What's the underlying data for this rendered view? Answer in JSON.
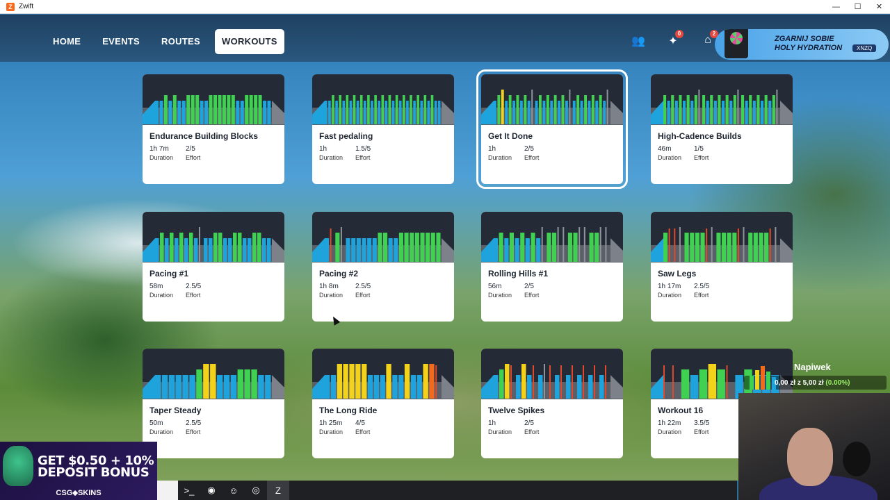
{
  "window": {
    "title": "Zwift",
    "app_icon_letter": "Z",
    "controls": [
      "—",
      "☐",
      "✕"
    ]
  },
  "nav": {
    "tabs": [
      {
        "label": "HOME",
        "active": false
      },
      {
        "label": "EVENTS",
        "active": false
      },
      {
        "label": "ROUTES",
        "active": false
      },
      {
        "label": "WORKOUTS",
        "active": true
      }
    ],
    "icons": [
      {
        "name": "friends-icon",
        "glyph": "👥",
        "badge": ""
      },
      {
        "name": "ride-ons-icon",
        "glyph": "✦",
        "badge": "0"
      },
      {
        "name": "garage-icon",
        "glyph": "⌂",
        "badge": "2"
      }
    ]
  },
  "ad": {
    "headline_1": "ZGARNIJ SOBIE",
    "headline_2": "HOLY HYDRATION",
    "code": "XNZQ"
  },
  "duration_label": "Duration",
  "effort_label": "Effort",
  "colors": {
    "blue": "#1fa3dc",
    "green": "#41d152",
    "yellow": "#f2d21b",
    "orange": "#f26b1d",
    "red": "#e04a2b",
    "grey": "#8f949b"
  },
  "workouts": [
    {
      "name": "Endurance Building Blocks",
      "duration": "1h 7m",
      "effort": "2/5",
      "selected": false,
      "profile": "bbgbgbbgggbbggggggbbggggbb"
    },
    {
      "name": "Fast pedaling",
      "duration": "1h",
      "effort": "1.5/5",
      "selected": false,
      "profile": "bbgbgbgbgbgbgbgbgbgbgbgbgbgbgbgbb"
    },
    {
      "name": "Get It Done",
      "duration": "1h",
      "effort": "2/5",
      "selected": true,
      "profile": "bgybgbgbgbxbgbgbgbgbxbgbgbgbgbx"
    },
    {
      "name": "High-Cadence Builds",
      "duration": "46m",
      "effort": "1/5",
      "selected": false,
      "profile": "gbgbgbgbgxgbgbgbgbgxgbgbgbgbgx"
    },
    {
      "name": "Pacing #1",
      "duration": "58m",
      "effort": "2.5/5",
      "selected": false,
      "profile": "bgbgbgbgbxbbggbbggbbggbb"
    },
    {
      "name": "Pacing #2",
      "duration": "1h 8m",
      "effort": "2.5/5",
      "selected": false,
      "profile": "brgxbbbbbbggbbgggggggg"
    },
    {
      "name": "Rolling Hills #1",
      "duration": "56m",
      "effort": "2/5",
      "selected": false,
      "profile": "bgbgbgbgbxggxxggxxggxx"
    },
    {
      "name": "Saw Legs",
      "duration": "1h 17m",
      "effort": "2.5/5",
      "selected": false,
      "profile": "grrxggggrxggggrxggggrx"
    },
    {
      "name": "Taper Steady",
      "duration": "50m",
      "effort": "2.5/5",
      "selected": false,
      "profile": "bbbbbbgyybbbgggbb"
    },
    {
      "name": "The Long Ride",
      "duration": "1h 25m",
      "effort": "4/5",
      "selected": false,
      "profile": "bbyyyyybbbybbybbyor"
    },
    {
      "name": "Twelve Spikes",
      "duration": "1h",
      "effort": "2/5",
      "selected": false,
      "profile": "bgyrbybrbxrbrbrbrbrbr"
    },
    {
      "name": "Workout 16",
      "duration": "1h 22m",
      "effort": "3.5/5",
      "selected": false,
      "profile": "rrgbgygrbgbbb"
    }
  ],
  "promo": {
    "line1": "GET $0.50 + 10%",
    "line2": "DEPOSIT BONUS",
    "brand": "CSG⬥SKINS"
  },
  "tip": {
    "title": "Napiwek",
    "amount": "0,00 zł",
    "of": "z",
    "goal": "5,00 zł",
    "percent": "(0.00%)"
  },
  "taskbar": [
    {
      "name": "terminal-icon",
      "glyph": ">_"
    },
    {
      "name": "chrome-icon",
      "glyph": "◉"
    },
    {
      "name": "discord-icon",
      "glyph": "☺"
    },
    {
      "name": "obs-icon",
      "glyph": "◎"
    },
    {
      "name": "zwift-icon",
      "glyph": "Z"
    }
  ]
}
